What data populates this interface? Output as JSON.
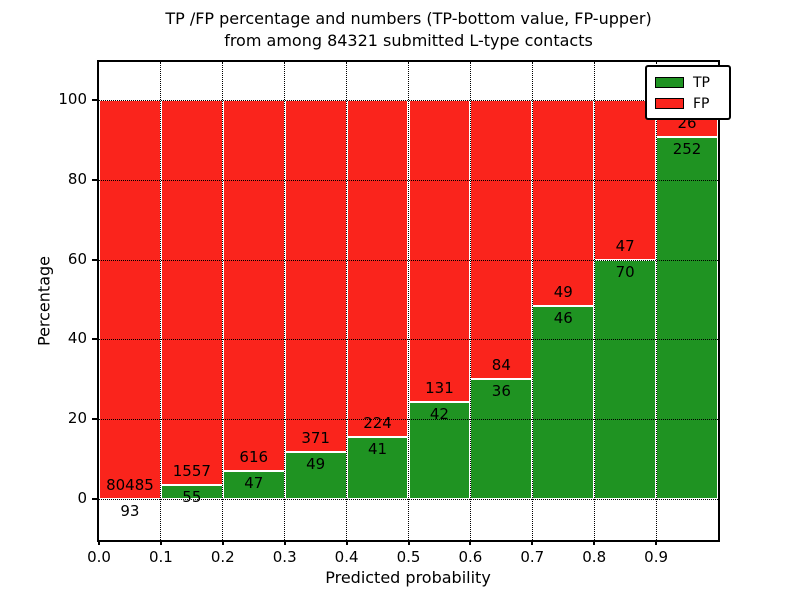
{
  "title": {
    "line1": "TP /FP percentage and numbers (TP-bottom value, FP-upper)",
    "line2": "from among 84321 submitted L-type contacts"
  },
  "axes": {
    "x_label": "Predicted probability",
    "y_label": "Percentage",
    "x_tick_labels": [
      "0.0",
      "0.1",
      "0.2",
      "0.3",
      "0.4",
      "0.5",
      "0.6",
      "0.7",
      "0.8",
      "0.9"
    ],
    "y_tick_labels": [
      "0",
      "20",
      "40",
      "60",
      "80",
      "100"
    ]
  },
  "legend": {
    "items": [
      {
        "label": "TP",
        "color": "#1f9322"
      },
      {
        "label": "FP",
        "color": "#fa241c"
      }
    ]
  },
  "colors": {
    "tp": "#1f9322",
    "fp": "#fa241c",
    "grid": "#000000",
    "bar_edge": "#ffffff"
  },
  "chart_data": {
    "type": "bar",
    "stacked": true,
    "normalized": "each bar totals 100%",
    "title": "TP /FP percentage and numbers (TP-bottom value, FP-upper) from among 84321 submitted L-type contacts",
    "xlabel": "Predicted probability",
    "ylabel": "Percentage",
    "xlim": [
      0.0,
      1.0
    ],
    "ylim": [
      -10,
      110
    ],
    "grid": true,
    "legend_position": "upper right",
    "total_contacts": 84321,
    "bin_edges": [
      0.0,
      0.1,
      0.2,
      0.3,
      0.4,
      0.5,
      0.6,
      0.7,
      0.8,
      0.9,
      1.0
    ],
    "categories": [
      "0.0",
      "0.1",
      "0.2",
      "0.3",
      "0.4",
      "0.5",
      "0.6",
      "0.7",
      "0.8",
      "0.9"
    ],
    "series": [
      {
        "name": "TP",
        "color": "#1f9322",
        "counts": [
          93,
          55,
          47,
          49,
          41,
          42,
          36,
          46,
          70,
          252
        ]
      },
      {
        "name": "FP",
        "color": "#fa241c",
        "counts": [
          80485,
          1557,
          616,
          371,
          224,
          131,
          84,
          49,
          47,
          26
        ]
      }
    ],
    "tp_percent": [
      0.12,
      3.41,
      7.09,
      11.67,
      15.47,
      24.28,
      30.0,
      48.42,
      59.83,
      90.65
    ],
    "fp_percent": [
      99.88,
      96.59,
      92.91,
      88.33,
      84.53,
      75.72,
      70.0,
      51.58,
      40.17,
      9.35
    ]
  }
}
